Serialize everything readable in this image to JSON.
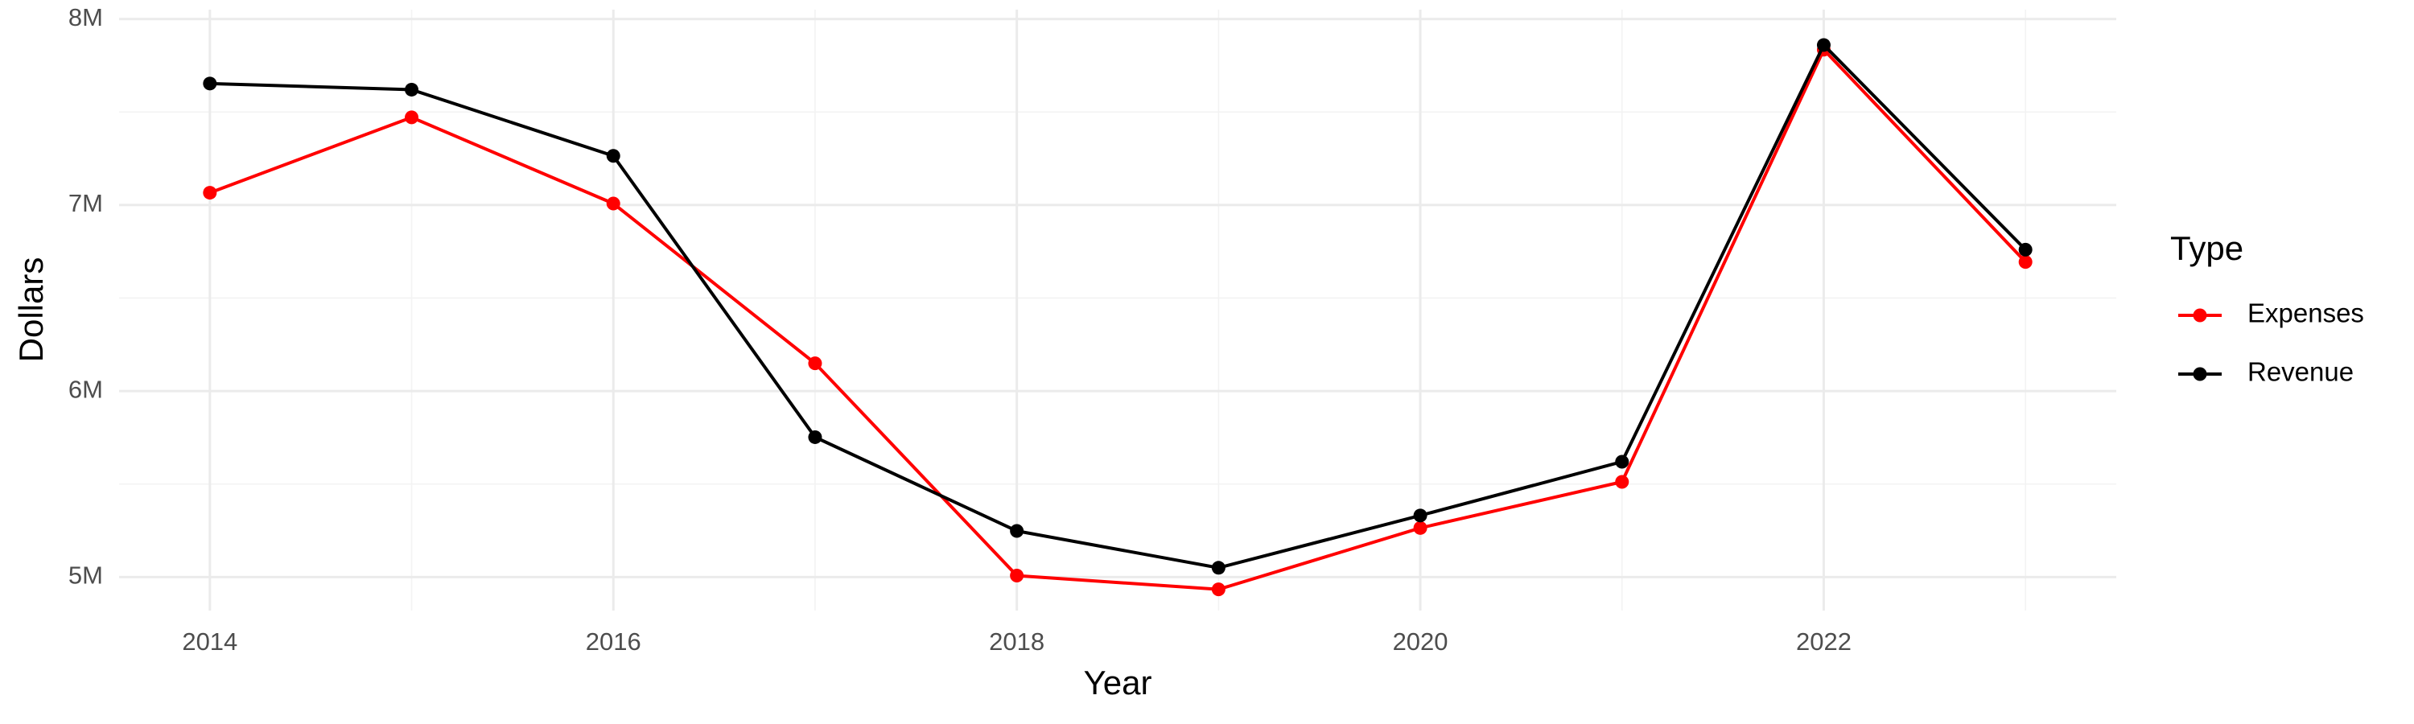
{
  "chart_data": {
    "type": "line",
    "x_label": "Year",
    "y_label": "Dollars",
    "legend_title": "Type",
    "x": [
      2014,
      2015,
      2016,
      2017,
      2018,
      2019,
      2020,
      2021,
      2022,
      2023
    ],
    "series": [
      {
        "name": "Expenses",
        "color": "#ff0000",
        "values": [
          7066000,
          7471000,
          7008000,
          6149000,
          5008000,
          4934000,
          5264000,
          5512000,
          7835000,
          6694000
        ]
      },
      {
        "name": "Revenue",
        "color": "#000000",
        "values": [
          7653000,
          7620000,
          7264000,
          5752000,
          5248000,
          5050000,
          5331000,
          5620000,
          7860000,
          6760000
        ]
      }
    ],
    "xlim": [
      2013.55,
      2023.45
    ],
    "ylim": [
      4820000,
      8050000
    ],
    "xticks": [
      2014,
      2016,
      2018,
      2020,
      2022
    ],
    "yticks": [
      {
        "value": 5000000,
        "label": "5M"
      },
      {
        "value": 6000000,
        "label": "6M"
      },
      {
        "value": 7000000,
        "label": "7M"
      },
      {
        "value": 8000000,
        "label": "8M"
      }
    ],
    "xminor": [
      2015,
      2017,
      2019,
      2021,
      2023
    ],
    "yminor": [
      5500000,
      6500000,
      7500000
    ],
    "grid": true,
    "legend": "right"
  }
}
